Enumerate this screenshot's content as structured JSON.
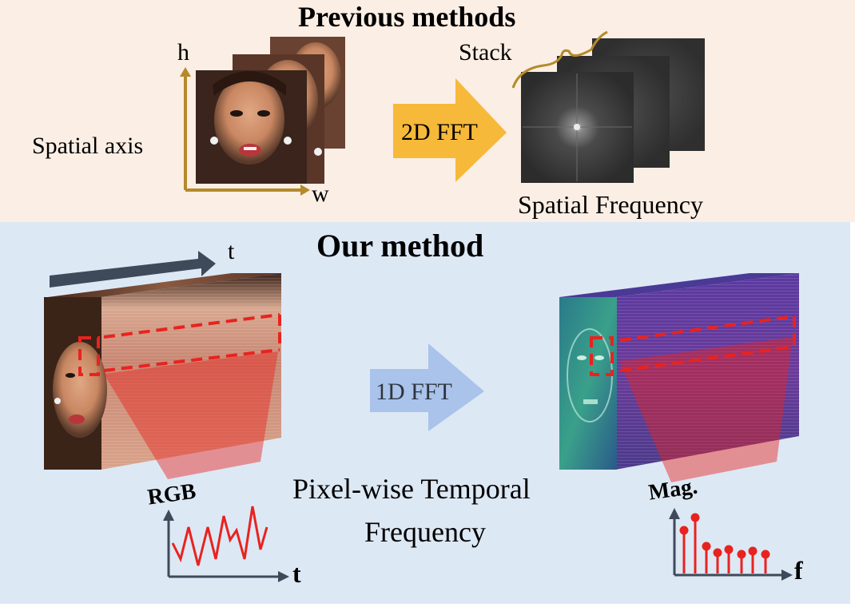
{
  "colors": {
    "top_bg": "#fbeee4",
    "bottom_bg": "#dde8f5",
    "gold": "#b48a2a",
    "fft_arrow_top": "#f7b93a",
    "fft_arrow_bottom": "#a9c3ea",
    "dark_arrow": "#3e4a5a",
    "red": "#e8231f",
    "spectrum": "#3a3a3a"
  },
  "top": {
    "title": "Previous methods",
    "axis_h": "h",
    "axis_w": "w",
    "spatial_axis": "Spatial axis",
    "fft_label": "2D FFT",
    "stack_label": "Stack",
    "spatial_frequency": "Spatial Frequency"
  },
  "bottom": {
    "title": "Our method",
    "time_label": "t",
    "fft_label": "1D FFT",
    "caption_line1": "Pixel-wise Temporal",
    "caption_line2": "Frequency",
    "rgb_label": "RGB",
    "rgb_axis": "t",
    "mag_label": "Mag.",
    "mag_axis": "f"
  },
  "icons": [
    "face-image-icon",
    "spectrum-image-icon",
    "video-cube-icon",
    "frequency-cube-icon",
    "rgb-signal-chart-icon",
    "magnitude-stem-chart-icon"
  ]
}
